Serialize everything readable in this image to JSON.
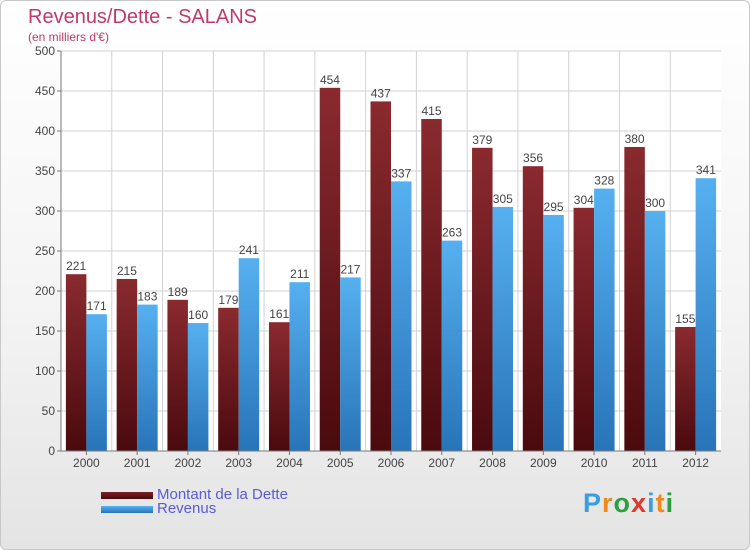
{
  "header": {
    "title": "Revenus/Dette - SALANS",
    "subtitle": "(en milliers d'€)"
  },
  "legend": {
    "items": [
      {
        "label": "Montant de la Dette",
        "color": "#7b1f24"
      },
      {
        "label": "Revenus",
        "color": "#47a2e6"
      }
    ]
  },
  "logo": {
    "text": "Proxiti",
    "letters": [
      "P",
      "r",
      "o",
      "x",
      "i",
      "t",
      "i"
    ],
    "colors": [
      "#3a9ee0",
      "#f08a1c",
      "#2f9e3f",
      "#e0362c",
      "#3a9ee0",
      "#f08a1c",
      "#2f9e3f"
    ]
  },
  "chart_data": {
    "type": "bar",
    "categories": [
      "2000",
      "2001",
      "2002",
      "2003",
      "2004",
      "2005",
      "2006",
      "2007",
      "2008",
      "2009",
      "2010",
      "2011",
      "2012"
    ],
    "series": [
      {
        "name": "Montant de la Dette",
        "color": "#7b1f24",
        "values": [
          221,
          215,
          189,
          179,
          161,
          454,
          437,
          415,
          379,
          356,
          304,
          380,
          155
        ]
      },
      {
        "name": "Revenus",
        "color": "#47a2e6",
        "values": [
          171,
          183,
          160,
          241,
          211,
          217,
          337,
          263,
          305,
          295,
          328,
          300,
          341
        ]
      }
    ],
    "title": "Revenus/Dette - SALANS",
    "subtitle": "(en milliers d'€)",
    "ylim": [
      0,
      500
    ],
    "yticks": [
      0,
      50,
      100,
      150,
      200,
      250,
      300,
      350,
      400,
      450,
      500
    ],
    "grid": true,
    "legend_position": "bottom-left"
  }
}
